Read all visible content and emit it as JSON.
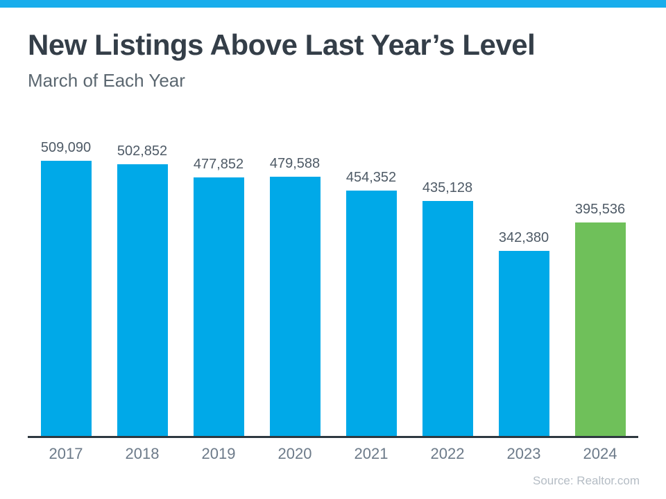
{
  "header": {
    "title": "New Listings Above Last Year’s Level",
    "subtitle": "March of Each Year"
  },
  "footer": {
    "source": "Source: Realtor.com"
  },
  "colors": {
    "top_strip": "#18ADEC",
    "bar_blue": "#00A9E8",
    "bar_green": "#6FC05A",
    "title_text": "#343E48",
    "subtitle_text": "#5B6770",
    "value_label_text": "#4E5A66",
    "year_label_text": "#6C7A89",
    "axis_line": "#2E3840",
    "source_text": "#B4BCC4"
  },
  "chart_data": {
    "type": "bar",
    "title": "New Listings Above Last Year’s Level",
    "subtitle": "March of Each Year",
    "categories": [
      "2017",
      "2018",
      "2019",
      "2020",
      "2021",
      "2022",
      "2023",
      "2024"
    ],
    "values": [
      509090,
      502852,
      477852,
      479588,
      454352,
      435128,
      342380,
      395536
    ],
    "value_labels": [
      "509,090",
      "502,852",
      "477,852",
      "479,588",
      "454,352",
      "435,128",
      "342,380",
      "395,536"
    ],
    "bar_colors": [
      "blue",
      "blue",
      "blue",
      "blue",
      "blue",
      "blue",
      "blue",
      "green"
    ],
    "highlight_index": 7,
    "xlabel": "",
    "ylabel": "",
    "ylim": [
      0,
      520000
    ],
    "grid": false,
    "legend": "none",
    "y_axis_visible": false,
    "source": "Source: Realtor.com"
  }
}
